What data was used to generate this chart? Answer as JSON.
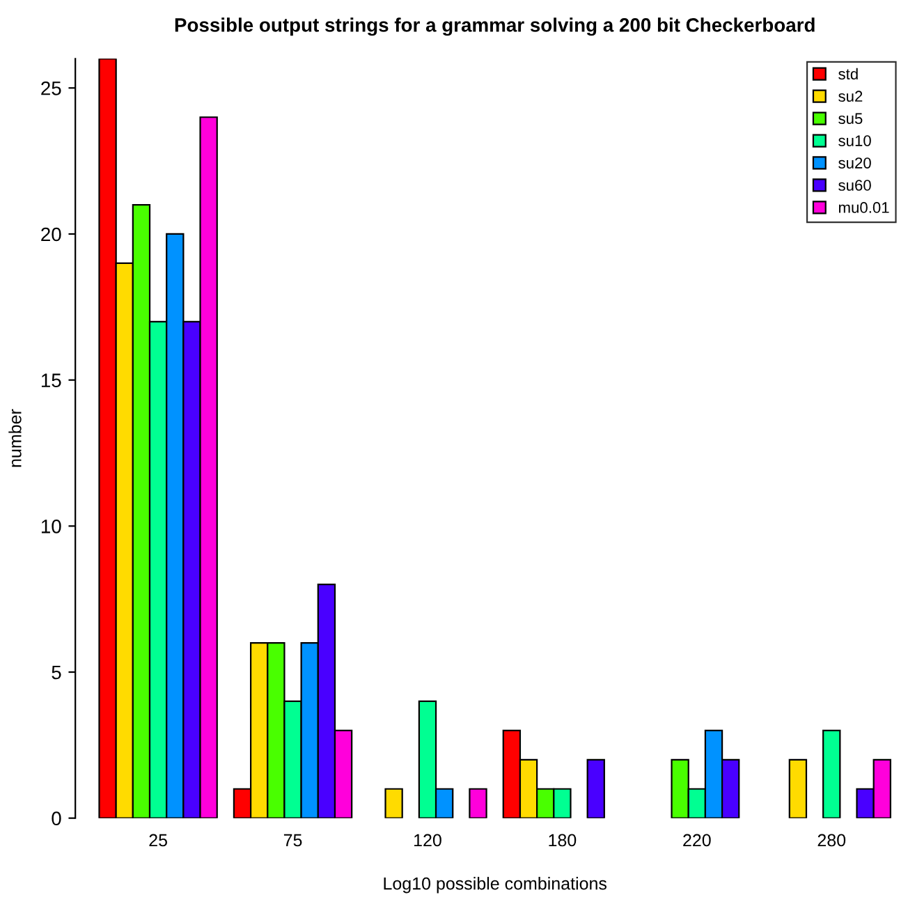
{
  "chart_data": {
    "type": "bar",
    "title": "Possible output strings for a grammar solving a 200 bit Checkerboard",
    "xlabel": "Log10 possible combinations",
    "ylabel": "number",
    "categories": [
      "25",
      "75",
      "120",
      "180",
      "220",
      "280"
    ],
    "series": [
      {
        "name": "std",
        "color": "#ff0000",
        "values": [
          26,
          1,
          0,
          3,
          0,
          0
        ]
      },
      {
        "name": "su2",
        "color": "#ffdb00",
        "values": [
          19,
          6,
          1,
          2,
          0,
          2
        ]
      },
      {
        "name": "su5",
        "color": "#49ff00",
        "values": [
          21,
          6,
          0,
          1,
          2,
          0
        ]
      },
      {
        "name": "su10",
        "color": "#00ff92",
        "values": [
          17,
          4,
          4,
          1,
          1,
          3
        ]
      },
      {
        "name": "su20",
        "color": "#0092ff",
        "values": [
          20,
          6,
          1,
          0,
          3,
          0
        ]
      },
      {
        "name": "su60",
        "color": "#4900ff",
        "values": [
          17,
          8,
          0,
          2,
          2,
          1
        ]
      },
      {
        "name": "mu0.01",
        "color": "#ff00db",
        "values": [
          24,
          3,
          1,
          0,
          0,
          2
        ]
      }
    ],
    "ylim": [
      0,
      26
    ],
    "yticks": [
      0,
      5,
      10,
      15,
      20,
      25
    ],
    "legend": "top right",
    "grid": false
  }
}
